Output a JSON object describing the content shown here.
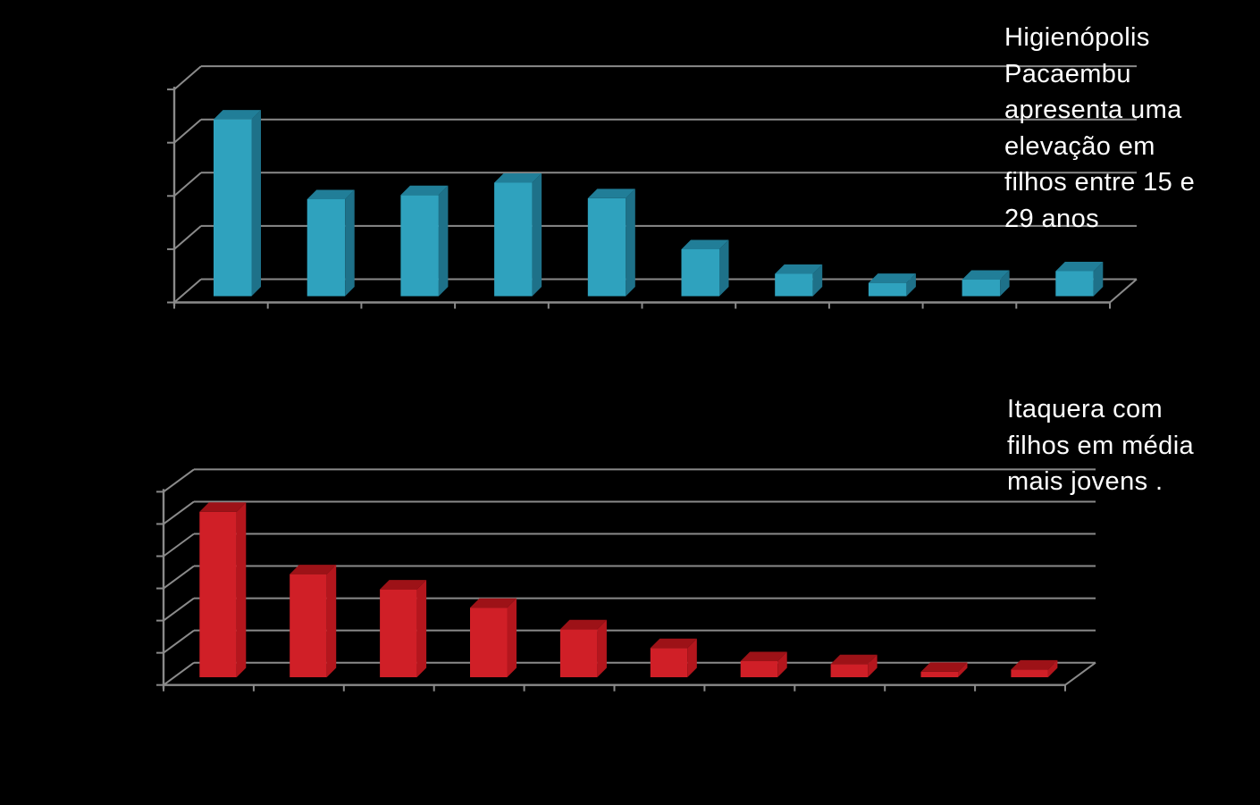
{
  "page": {
    "background": "#000000",
    "description": "Presentation slide with two 3D column charts (values axis ticks present but tick labels not visible against black background)"
  },
  "colors": {
    "grid": "#8a8a8a",
    "axis": "#8a8a8a",
    "text": "#ffffff"
  },
  "annotations": {
    "top": {
      "text": "Higienópolis Pacaembu apresenta uma elevação em filhos entre 15 e 29 anos",
      "lines": [
        "Higienópolis",
        "Pacaembu",
        "apresenta uma",
        "elevação em",
        "filhos entre 15 e",
        "29 anos"
      ],
      "color": "#ffffff"
    },
    "bottom": {
      "text": "Itaquera com filhos em média mais jovens .",
      "lines": [
        "Itaquera com",
        "filhos em média",
        "mais jovens ."
      ],
      "color": "#ffffff"
    }
  },
  "chart_data": [
    {
      "id": "higienopolis_pacaembu",
      "type": "bar",
      "style": "3d-column",
      "title": "",
      "xlabel": "",
      "ylabel": "",
      "categories": [
        "",
        "",
        "",
        "",
        "",
        "",
        "",
        "",
        "",
        ""
      ],
      "values": [
        3.32,
        1.82,
        1.9,
        2.13,
        1.84,
        0.88,
        0.42,
        0.25,
        0.31,
        0.47
      ],
      "value_unit": "gridline-intervals (axis tick labels not visible in image)",
      "ylim": [
        0,
        4
      ],
      "gridlines": true,
      "legend": "none",
      "bar_colors": {
        "front": "#2FA2BE",
        "top": "#217E98",
        "side": "#1E7189"
      },
      "annotation": "Higienópolis Pacaembu apresenta uma elevação em filhos entre 15 e 29 anos"
    },
    {
      "id": "itaquera",
      "type": "bar",
      "style": "3d-column",
      "title": "",
      "xlabel": "",
      "ylabel": "",
      "categories": [
        "",
        "",
        "",
        "",
        "",
        "",
        "",
        "",
        "",
        ""
      ],
      "values": [
        5.14,
        3.2,
        2.73,
        2.16,
        1.49,
        0.91,
        0.5,
        0.41,
        0.17,
        0.24
      ],
      "value_unit": "gridline-intervals (axis tick labels not visible in image)",
      "ylim": [
        0,
        6
      ],
      "gridlines": true,
      "legend": "none",
      "bar_colors": {
        "front": "#D01F27",
        "top": "#9D1217",
        "side": "#B4161D"
      },
      "annotation": "Itaquera com filhos em média mais jovens ."
    }
  ]
}
